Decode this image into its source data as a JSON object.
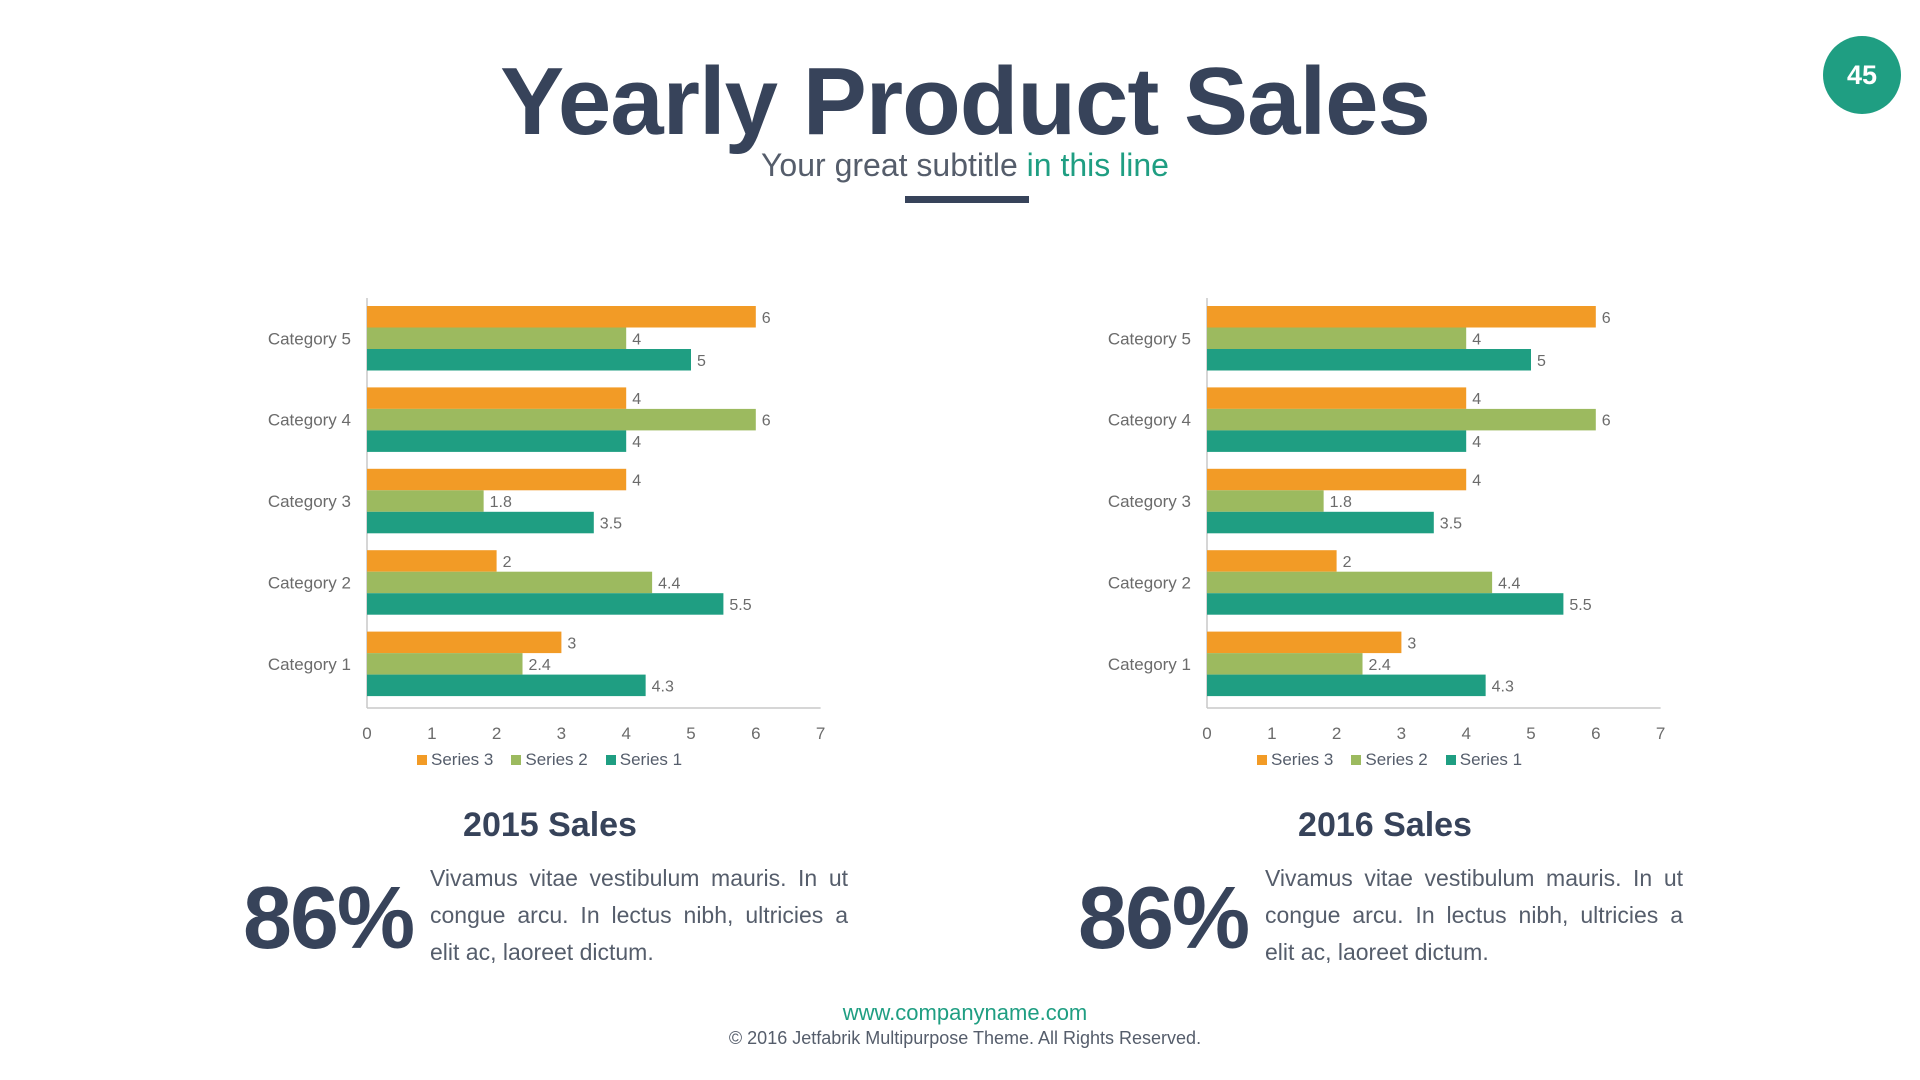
{
  "page_number": "45",
  "header": {
    "title": "Yearly Product Sales",
    "subtitle_main": "Your great subtitle ",
    "subtitle_accent": "in this line"
  },
  "colors": {
    "dark": "#37435a",
    "accent": "#1f9e82",
    "series_1": "#1f9e82",
    "series_2": "#9cba5f",
    "series_3": "#f29b26",
    "axis": "#c8c8c8",
    "label": "#6b6b6b"
  },
  "chart_data": [
    {
      "type": "bar",
      "orientation": "horizontal",
      "categories": [
        "Category 1",
        "Category 2",
        "Category 3",
        "Category 4",
        "Category 5"
      ],
      "series": [
        {
          "name": "Series 1",
          "values": [
            4.3,
            5.5,
            3.5,
            4,
            5
          ]
        },
        {
          "name": "Series 2",
          "values": [
            2.4,
            4.4,
            1.8,
            6,
            4
          ]
        },
        {
          "name": "Series 3",
          "values": [
            3,
            2,
            4,
            4,
            6
          ]
        }
      ],
      "legend_order": [
        "Series 3",
        "Series 2",
        "Series 1"
      ],
      "xlim": [
        0,
        7
      ],
      "xticks": [
        0,
        1,
        2,
        3,
        4,
        5,
        6,
        7
      ],
      "data_labels": true,
      "grid": false,
      "legend_position": "bottom"
    },
    {
      "type": "bar",
      "orientation": "horizontal",
      "categories": [
        "Category 1",
        "Category 2",
        "Category 3",
        "Category 4",
        "Category 5"
      ],
      "series": [
        {
          "name": "Series 1",
          "values": [
            4.3,
            5.5,
            3.5,
            4,
            5
          ]
        },
        {
          "name": "Series 2",
          "values": [
            2.4,
            4.4,
            1.8,
            6,
            4
          ]
        },
        {
          "name": "Series 3",
          "values": [
            3,
            2,
            4,
            4,
            6
          ]
        }
      ],
      "legend_order": [
        "Series 3",
        "Series 2",
        "Series 1"
      ],
      "xlim": [
        0,
        7
      ],
      "xticks": [
        0,
        1,
        2,
        3,
        4,
        5,
        6,
        7
      ],
      "data_labels": true,
      "grid": false,
      "legend_position": "bottom"
    }
  ],
  "sections": [
    {
      "title": "2015 Sales",
      "percent": "86%",
      "text": "Vivamus vitae vestibulum mauris. In ut congue arcu. In lectus nibh, ultricies a elit ac, laoreet dictum."
    },
    {
      "title": "2016 Sales",
      "percent": "86%",
      "text": "Vivamus vitae vestibulum mauris. In ut congue arcu. In lectus nibh, ultricies a elit ac, laoreet dictum."
    }
  ],
  "footer": {
    "url": "www.companyname.com",
    "copyright": "© 2016 Jetfabrik Multipurpose Theme. All Rights Reserved."
  }
}
